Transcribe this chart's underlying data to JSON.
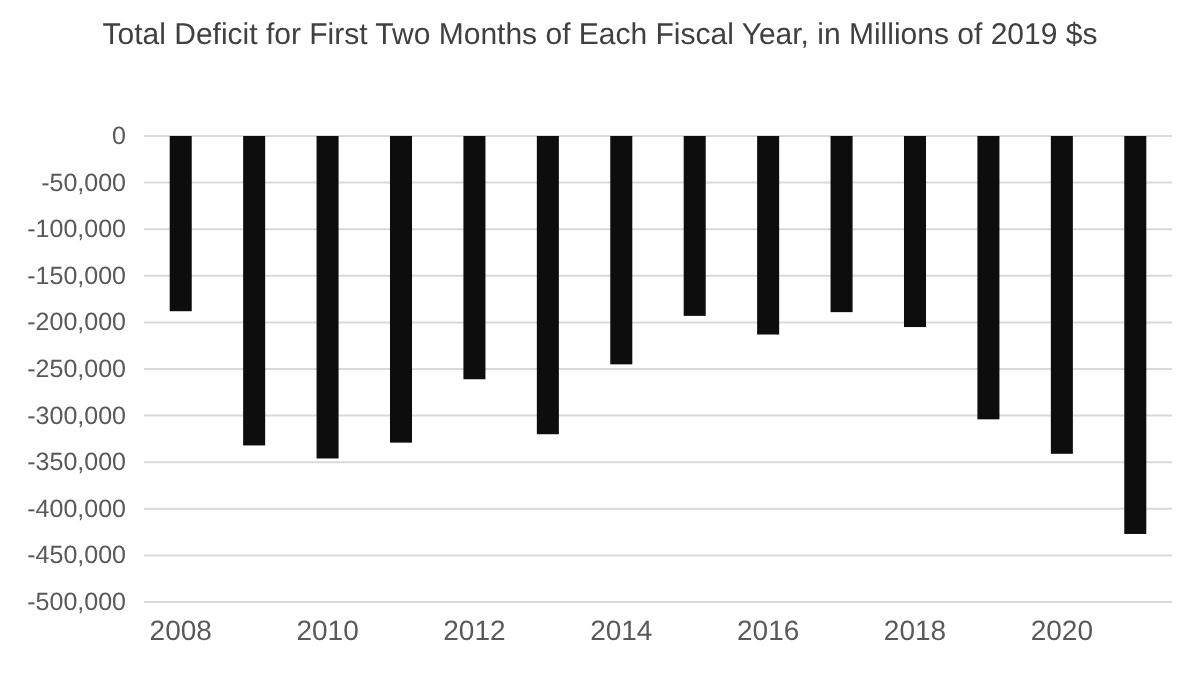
{
  "chart_data": {
    "type": "bar",
    "title": "Total Deficit for First Two Months of Each Fiscal Year, in Millions of 2019 $s",
    "categories": [
      "2008",
      null,
      "2010",
      null,
      "2012",
      null,
      "2014",
      null,
      "2016",
      null,
      "2018",
      null,
      "2020",
      null
    ],
    "values": [
      -188000,
      -332000,
      -346000,
      -329000,
      -261000,
      -320000,
      -245000,
      -193000,
      -213000,
      -189000,
      -205000,
      -304000,
      -341000,
      -427000
    ],
    "color": "#0d0d0d",
    "ylim": [
      -500000,
      0
    ],
    "yticks": [
      {
        "value": -500000,
        "label": "-500,000"
      },
      {
        "value": -450000,
        "label": "-450,000"
      },
      {
        "value": -400000,
        "label": "-400,000"
      },
      {
        "value": -350000,
        "label": "-350,000"
      },
      {
        "value": -300000,
        "label": "-300,000"
      },
      {
        "value": -250000,
        "label": "-250,000"
      },
      {
        "value": -200000,
        "label": "-200,000"
      },
      {
        "value": -150000,
        "label": "-150,000"
      },
      {
        "value": -100000,
        "label": "-100,000"
      },
      {
        "value": -50000,
        "label": "-50,000"
      },
      0
    ],
    "grid": "y"
  }
}
